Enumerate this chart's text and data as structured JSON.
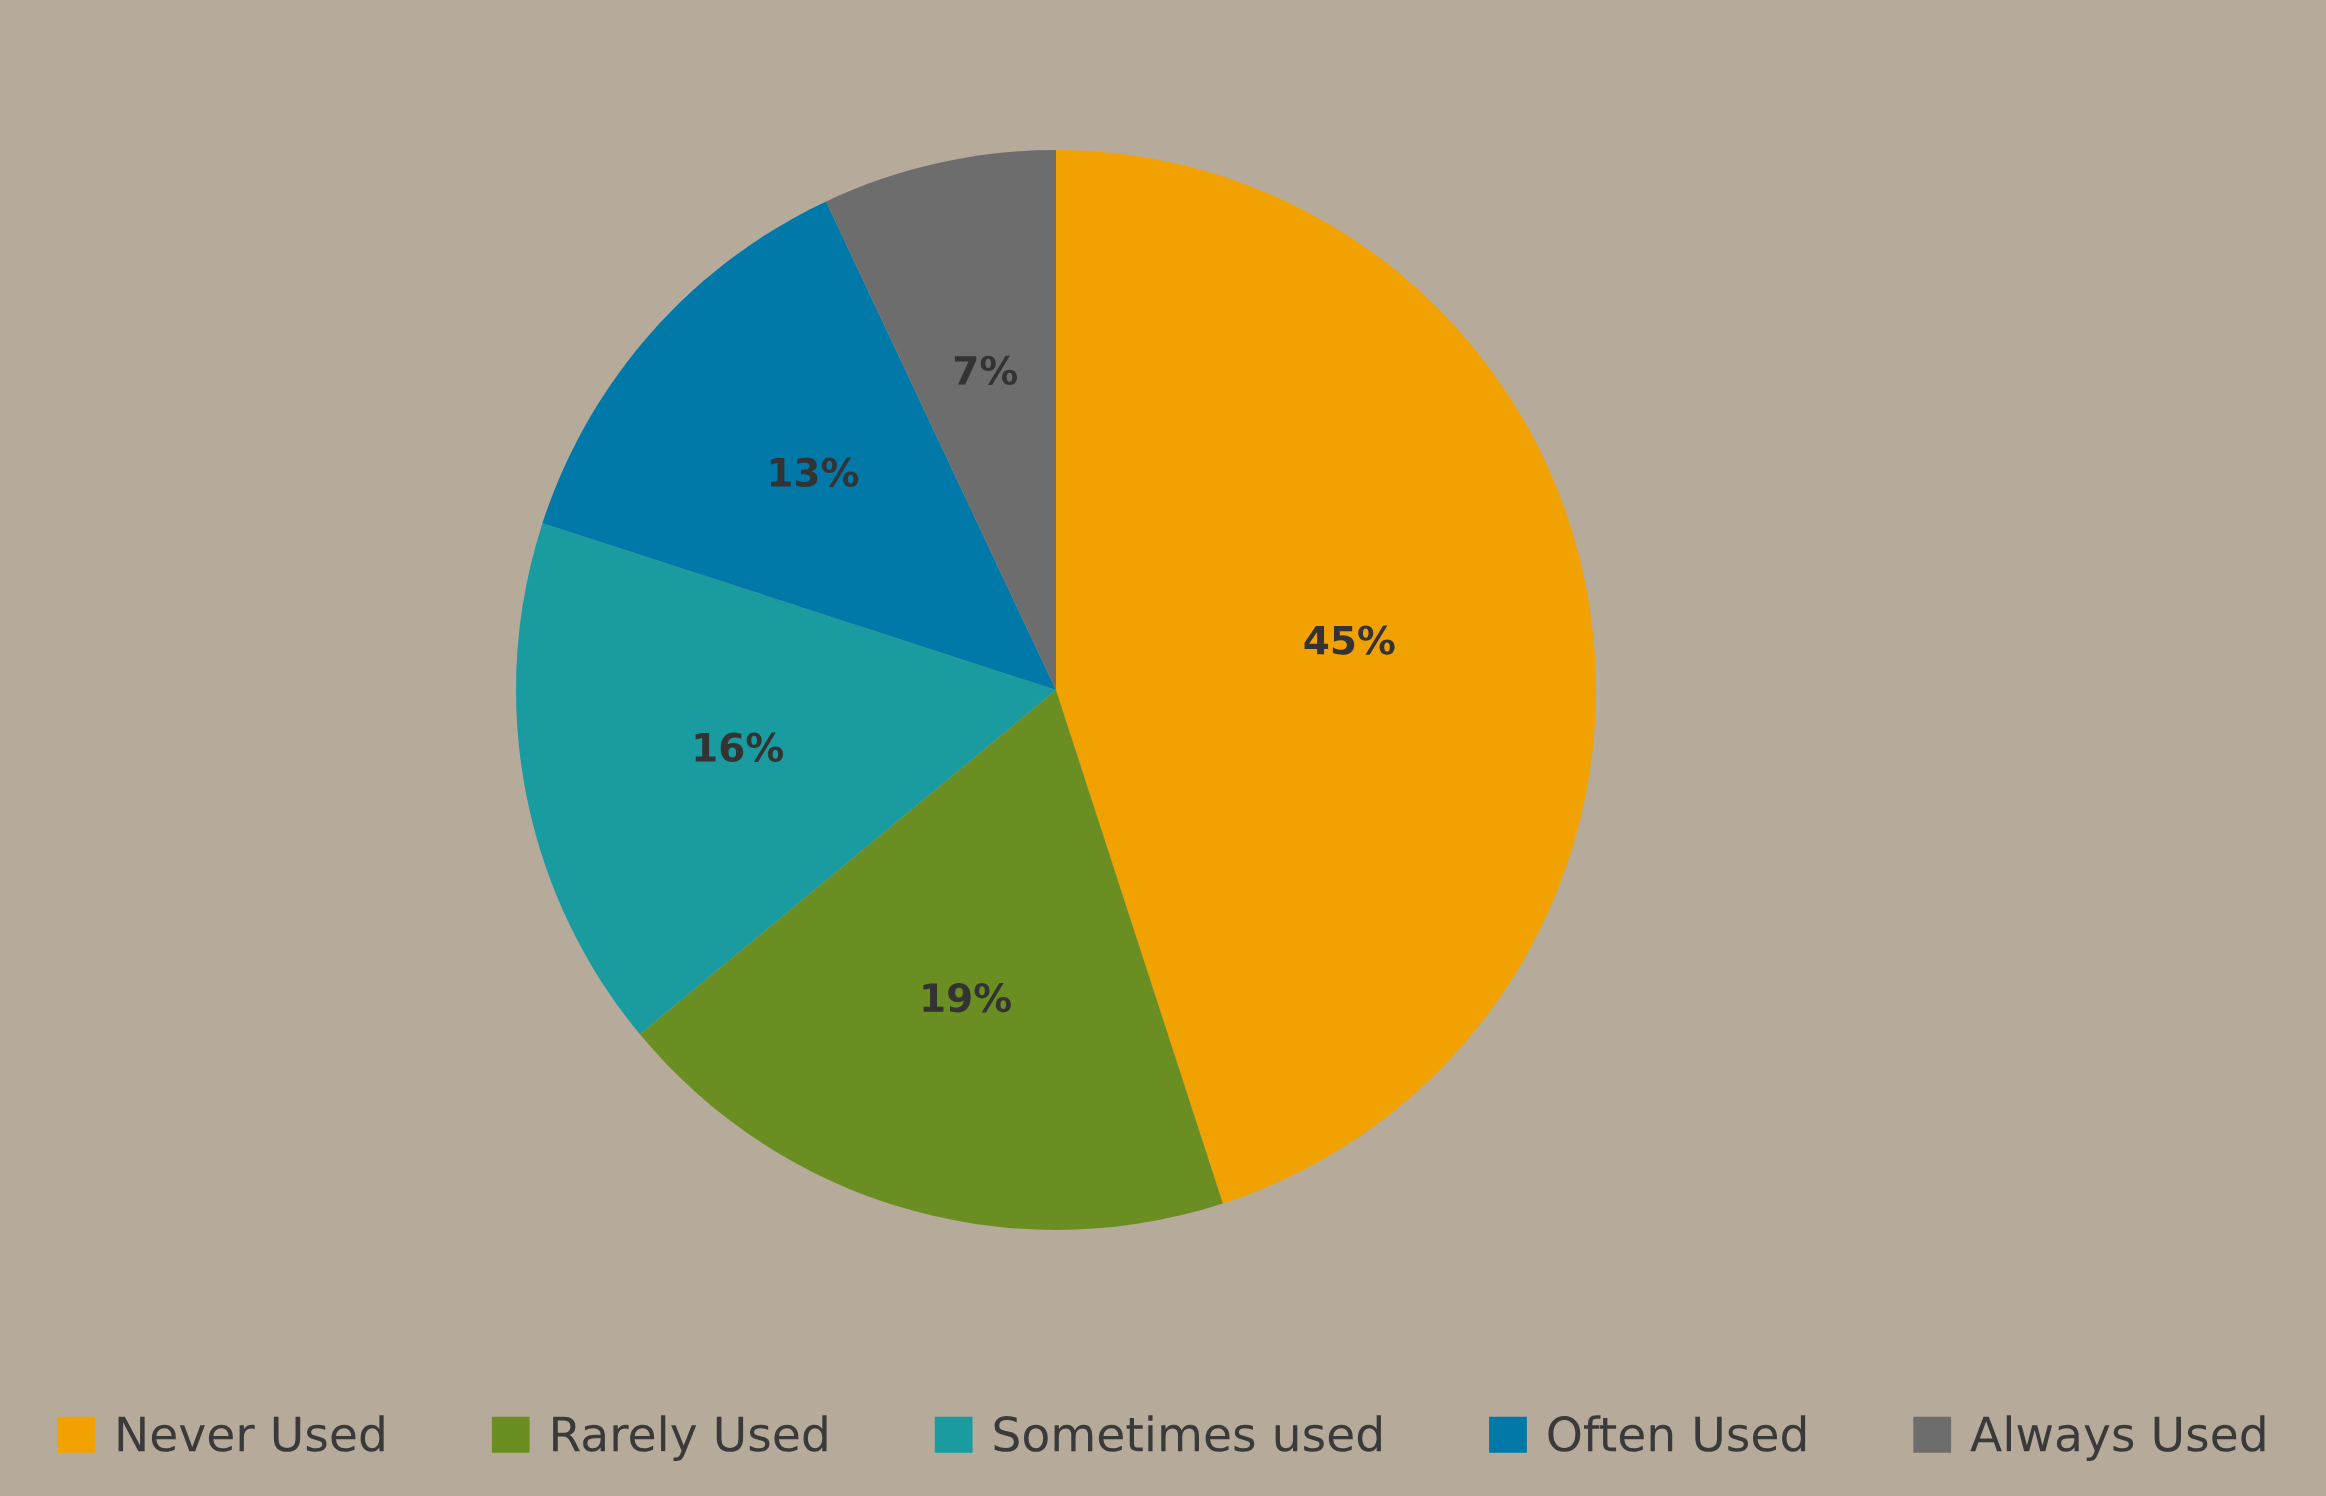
{
  "chart_data": {
    "type": "pie",
    "categories": [
      "Never Used",
      "Rarely Used",
      "Sometimes used",
      "Often Used",
      "Always Used"
    ],
    "values": [
      45,
      19,
      16,
      13,
      7
    ],
    "colors": [
      "#f2a200",
      "#6b8e23",
      "#1a9ba0",
      "#0079a8",
      "#6d6d6d"
    ],
    "value_labels": [
      "45%",
      "19%",
      "16%",
      "13%",
      "7%"
    ],
    "legend": "bottom"
  }
}
